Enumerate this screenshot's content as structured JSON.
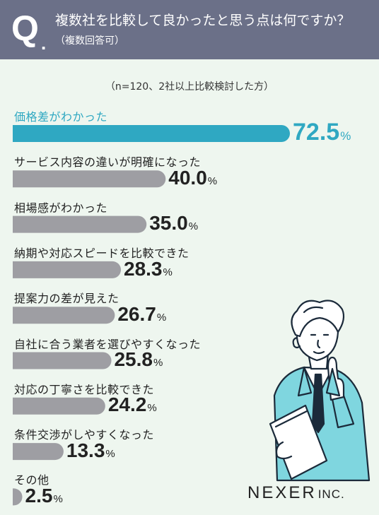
{
  "header": {
    "q_mark": "Q",
    "q_dot": ".",
    "question": "複数社を比較して良かったと思う点は何ですか？",
    "subtitle": "（複数回答可）"
  },
  "note": "（n=120、2社以上比較検討した方）",
  "logo": {
    "name": "NEXER",
    "suffix": "INC."
  },
  "colors": {
    "highlight": "#2fa8c2",
    "bar": "#9e9ea3",
    "header": "#6b7088",
    "background": "#eef6ef"
  },
  "chart_data": {
    "type": "bar",
    "orientation": "horizontal",
    "unit": "%",
    "categories": [
      "価格差がわかった",
      "サービス内容の違いが明確になった",
      "相場感がわかった",
      "納期や対応スピードを比較できた",
      "提案力の差が見えた",
      "自社に合う業者を選びやすくなった",
      "対応の丁寧さを比較できた",
      "条件交渉がしやすくなった",
      "その他"
    ],
    "values": [
      72.5,
      40.0,
      35.0,
      28.3,
      26.7,
      25.8,
      24.2,
      13.3,
      2.5
    ],
    "value_labels": [
      "72.5",
      "40.0",
      "35.0",
      "28.3",
      "26.7",
      "25.8",
      "24.2",
      "13.3",
      "2.5"
    ],
    "highlight_index": 0
  }
}
